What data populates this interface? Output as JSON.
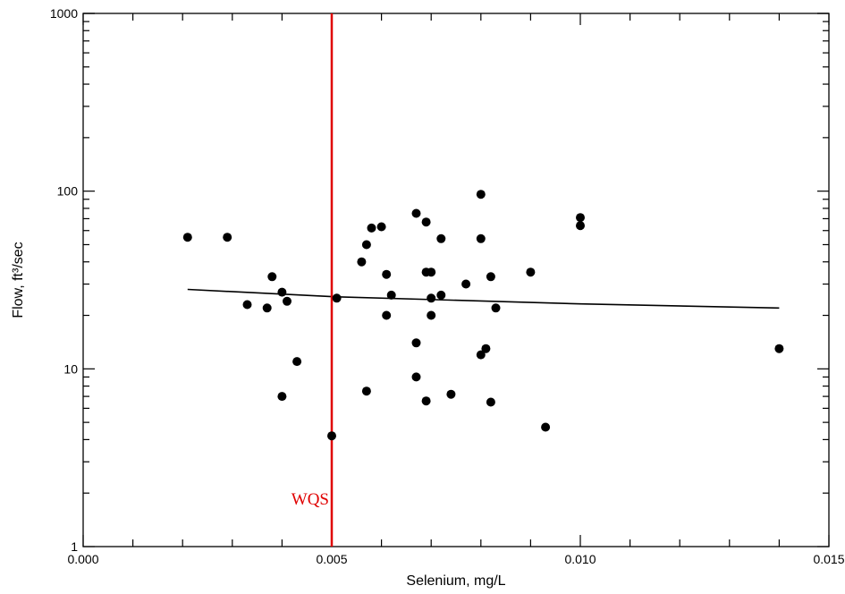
{
  "chart_data": {
    "type": "scatter",
    "xlabel": "Selenium, mg/L",
    "ylabel": "Flow, ft³/sec",
    "xlim": [
      0.0,
      0.015
    ],
    "ylim": [
      1,
      1000
    ],
    "yscale": "log",
    "grid": false,
    "x_ticks": [
      0.0,
      0.005,
      0.01,
      0.015
    ],
    "x_tick_labels": [
      "0.000",
      "0.005",
      "0.010",
      "0.015"
    ],
    "y_ticks": [
      1,
      10,
      100,
      1000
    ],
    "y_tick_labels": [
      "1",
      "10",
      "100",
      "1000"
    ],
    "series": [
      {
        "marker": "filled-circle",
        "color": "#000000",
        "points": [
          [
            0.0021,
            55
          ],
          [
            0.0029,
            55
          ],
          [
            0.0033,
            23
          ],
          [
            0.0037,
            22
          ],
          [
            0.0038,
            33
          ],
          [
            0.004,
            27
          ],
          [
            0.004,
            7.0
          ],
          [
            0.0041,
            24
          ],
          [
            0.0043,
            11
          ],
          [
            0.005,
            4.2
          ],
          [
            0.0051,
            25
          ],
          [
            0.0056,
            40
          ],
          [
            0.0057,
            50
          ],
          [
            0.0057,
            7.5
          ],
          [
            0.0058,
            62
          ],
          [
            0.006,
            63
          ],
          [
            0.0061,
            34
          ],
          [
            0.0061,
            20
          ],
          [
            0.0062,
            26
          ],
          [
            0.0067,
            75
          ],
          [
            0.0067,
            14
          ],
          [
            0.0067,
            9.0
          ],
          [
            0.0069,
            67
          ],
          [
            0.0069,
            35
          ],
          [
            0.0069,
            6.6
          ],
          [
            0.007,
            35
          ],
          [
            0.007,
            25
          ],
          [
            0.007,
            20
          ],
          [
            0.0072,
            54
          ],
          [
            0.0072,
            26
          ],
          [
            0.0074,
            7.2
          ],
          [
            0.0077,
            30
          ],
          [
            0.008,
            96
          ],
          [
            0.008,
            54
          ],
          [
            0.008,
            12
          ],
          [
            0.0081,
            13
          ],
          [
            0.0082,
            33
          ],
          [
            0.0082,
            6.5
          ],
          [
            0.0083,
            22
          ],
          [
            0.009,
            35
          ],
          [
            0.0093,
            4.7
          ],
          [
            0.01,
            71
          ],
          [
            0.01,
            64
          ],
          [
            0.014,
            13
          ]
        ]
      }
    ],
    "trend_line": {
      "color": "#000000",
      "points": [
        [
          0.0021,
          28
        ],
        [
          0.005,
          25.5
        ],
        [
          0.01,
          23.2
        ],
        [
          0.014,
          22
        ]
      ]
    },
    "reference_line": {
      "x": 0.005,
      "label": "WQS",
      "color": "#e00000"
    }
  }
}
